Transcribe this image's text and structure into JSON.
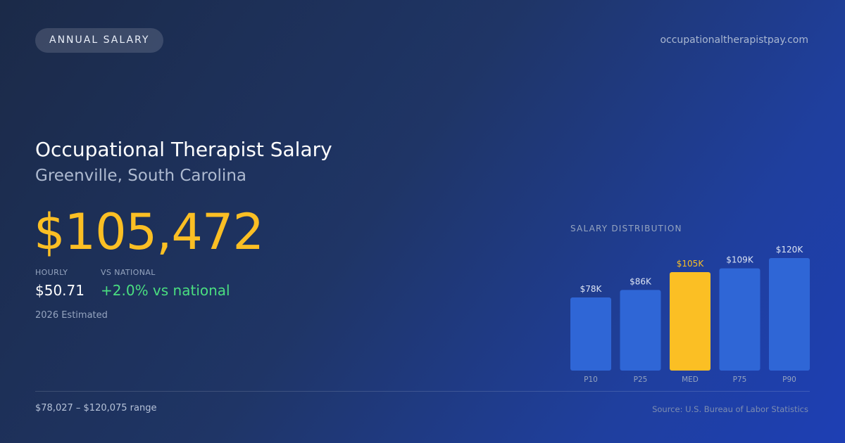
{
  "header": {
    "badge": "ANNUAL SALARY",
    "site": "occupationaltherapistpay.com"
  },
  "headline": {
    "title": "Occupational Therapist Salary",
    "location": "Greenville, South Carolina",
    "annual_salary": "$105,472"
  },
  "stats": {
    "hourly_label": "HOURLY",
    "hourly_value": "$50.71",
    "national_label": "VS NATIONAL",
    "national_value": "+2.0% vs national",
    "estimate_note": "2026 Estimated"
  },
  "footer": {
    "range": "$78,027 – $120,075 range",
    "source": "Source: U.S. Bureau of Labor Statistics"
  },
  "colors": {
    "accent": "#fbbf24",
    "positive": "#4ade80",
    "bar": "#2f66d6",
    "bar_highlight": "#fbbf24"
  },
  "chart_data": {
    "type": "bar",
    "title": "SALARY DISTRIBUTION",
    "categories": [
      "P10",
      "P25",
      "MED",
      "P75",
      "P90"
    ],
    "values": [
      78,
      86,
      105,
      109,
      120
    ],
    "value_labels": [
      "$78K",
      "$86K",
      "$105K",
      "$109K",
      "$120K"
    ],
    "highlight_index": 2,
    "units": "thousand USD",
    "ylim": [
      0,
      120
    ],
    "grid": false,
    "legend": "none"
  }
}
